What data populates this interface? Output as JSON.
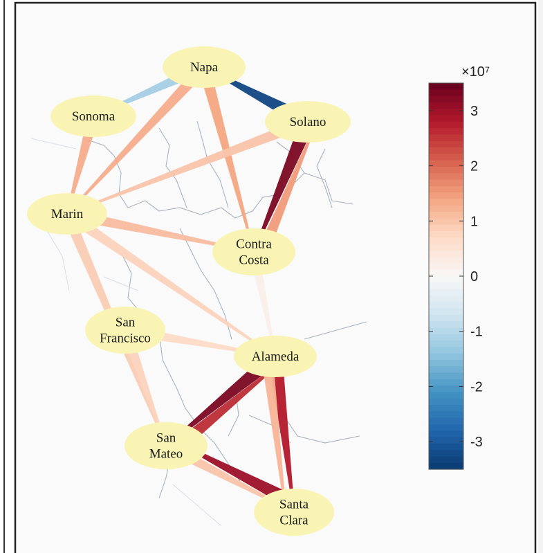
{
  "colorbar": {
    "exponent_label": "×10⁷",
    "ticks": [
      "3",
      "2",
      "1",
      "0",
      "-1",
      "-2",
      "-3"
    ],
    "range": [
      -3.5,
      3.5
    ],
    "colors": [
      "#0a3a72",
      "#2166ac",
      "#4393c3",
      "#92c5de",
      "#d1e5f0",
      "#f7f7f7",
      "#fddbc7",
      "#f4a582",
      "#d6604d",
      "#b2182b",
      "#67001f"
    ]
  },
  "nodes": [
    {
      "id": "napa",
      "lines": [
        "Napa"
      ]
    },
    {
      "id": "sonoma",
      "lines": [
        "Sonoma"
      ]
    },
    {
      "id": "solano",
      "lines": [
        "Solano"
      ]
    },
    {
      "id": "marin",
      "lines": [
        "Marin"
      ]
    },
    {
      "id": "contra-costa",
      "lines": [
        "Contra",
        "Costa"
      ]
    },
    {
      "id": "san-francisco",
      "lines": [
        "San",
        "Francisco"
      ]
    },
    {
      "id": "alameda",
      "lines": [
        "Alameda"
      ]
    },
    {
      "id": "san-mateo",
      "lines": [
        "San",
        "Mateo"
      ]
    },
    {
      "id": "santa-clara",
      "lines": [
        "Santa",
        "Clara"
      ]
    }
  ],
  "edges": [
    {
      "from": "napa",
      "to": "sonoma",
      "value": -1.2
    },
    {
      "from": "solano",
      "to": "napa",
      "value": -3.3
    },
    {
      "from": "napa",
      "to": "marin",
      "value": 1.3
    },
    {
      "from": "napa",
      "to": "contra-costa",
      "value": 1.4
    },
    {
      "from": "sonoma",
      "to": "marin",
      "value": 1.3
    },
    {
      "from": "solano",
      "to": "marin",
      "value": 1.0
    },
    {
      "from": "solano",
      "to": "contra-costa",
      "value": 3.3
    },
    {
      "from": "contra-costa",
      "to": "solano",
      "value": 1.5
    },
    {
      "from": "marin",
      "to": "contra-costa",
      "value": 1.1
    },
    {
      "from": "marin",
      "to": "alameda",
      "value": 0.8
    },
    {
      "from": "contra-costa",
      "to": "alameda",
      "value": 0.4
    },
    {
      "from": "san-francisco",
      "to": "alameda",
      "value": 0.7
    },
    {
      "from": "marin",
      "to": "san-mateo",
      "value": 0.9
    },
    {
      "from": "san-francisco",
      "to": "san-mateo",
      "value": 0.8
    },
    {
      "from": "alameda",
      "to": "san-mateo",
      "value": 3.3
    },
    {
      "from": "san-mateo",
      "to": "alameda",
      "value": 2.6
    },
    {
      "from": "alameda",
      "to": "santa-clara",
      "value": 2.8
    },
    {
      "from": "alameda",
      "to": "santa-clara",
      "value": 1.2
    },
    {
      "from": "san-mateo",
      "to": "santa-clara",
      "value": 1.0
    },
    {
      "from": "santa-clara",
      "to": "san-mateo",
      "value": 3.0
    }
  ]
}
